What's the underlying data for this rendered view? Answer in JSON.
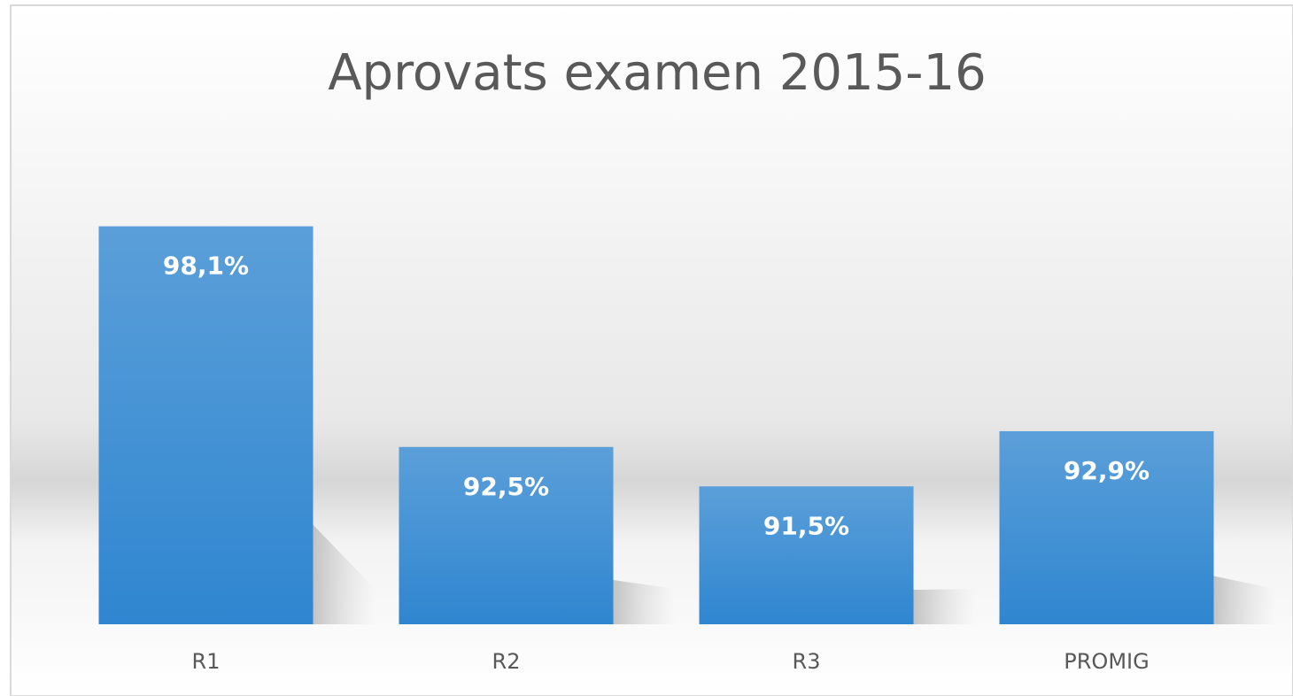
{
  "chart_data": {
    "type": "bar",
    "title": "Aprovats examen 2015-16",
    "categories": [
      "R1",
      "R2",
      "R3",
      "PROMIG"
    ],
    "values": [
      98.1,
      92.5,
      91.5,
      92.9
    ],
    "value_labels": [
      "98,1%",
      "92,5%",
      "91,5%",
      "92,9%"
    ],
    "color": "#3d8fd6",
    "ylim": [
      88,
      100
    ]
  }
}
